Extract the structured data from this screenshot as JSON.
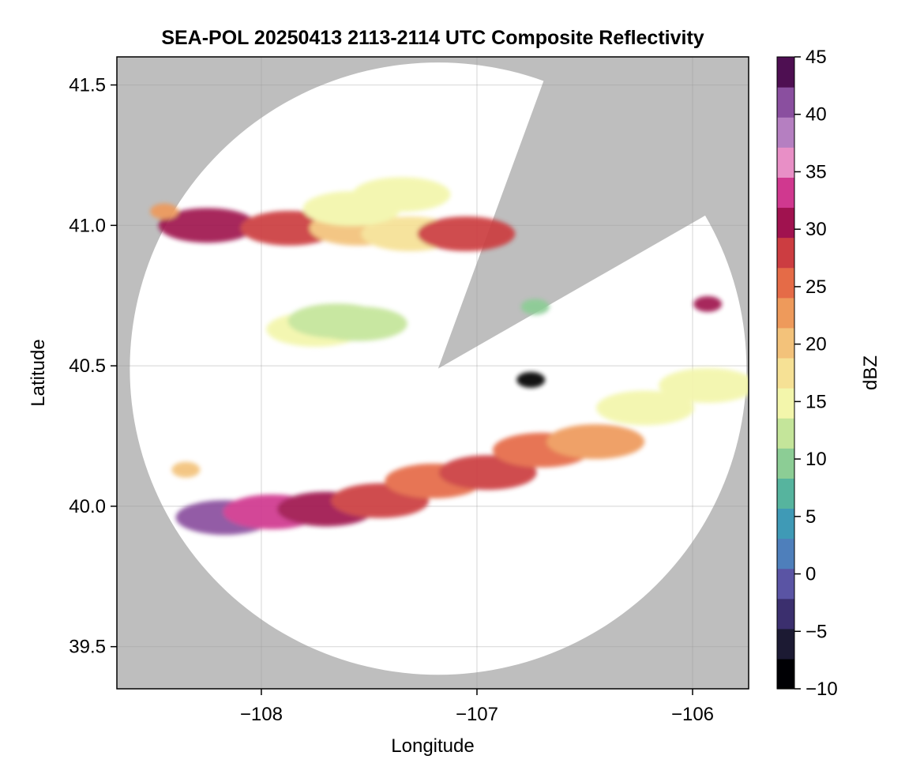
{
  "chart_data": {
    "type": "heatmap",
    "title": "SEA-POL 20250413 2113-2114 UTC Composite Reflectivity",
    "xlabel": "Longitude",
    "ylabel": "Latitude",
    "xlim": [
      -108.67,
      -105.74
    ],
    "ylim": [
      39.35,
      41.6
    ],
    "xticks": [
      {
        "value": -108,
        "label": "−108"
      },
      {
        "value": -107,
        "label": "−107"
      },
      {
        "value": -106,
        "label": "−106"
      }
    ],
    "yticks": [
      {
        "value": 39.5,
        "label": "39.5"
      },
      {
        "value": 40.0,
        "label": "40.0"
      },
      {
        "value": 40.5,
        "label": "40.5"
      },
      {
        "value": 41.0,
        "label": "41.0"
      },
      {
        "value": 41.5,
        "label": "41.5"
      }
    ],
    "grid": true,
    "missing_color": "#bebebe",
    "radar": {
      "center": [
        -107.18,
        40.49
      ],
      "max_range_lon": 1.43,
      "max_range_lat": 1.09,
      "blocked_sectors": [
        {
          "az_start": 20,
          "az_end": 60
        }
      ]
    },
    "colorbar": {
      "label": "dBZ",
      "range": [
        -10,
        45
      ],
      "ticks": [
        -10,
        -5,
        0,
        5,
        10,
        15,
        20,
        25,
        30,
        35,
        40,
        45
      ],
      "colors": [
        "#000004",
        "#1c1a33",
        "#3b2f6e",
        "#5a54a4",
        "#4e7fbb",
        "#3f9ab6",
        "#56b49e",
        "#8ccd95",
        "#c4e59a",
        "#f3f6ab",
        "#f6e195",
        "#f3c27a",
        "#ee9a5b",
        "#e56b47",
        "#cc3d41",
        "#a0124f",
        "#d0388f",
        "#e88fc6",
        "#b57fc1",
        "#8a4f9f",
        "#4e0f52"
      ]
    },
    "echoes": [
      {
        "lon": [
          -108.25,
          -107.87,
          -107.55,
          -107.31,
          -107.05
        ],
        "lat": [
          41.0,
          40.99,
          40.99,
          40.97,
          40.97
        ],
        "dbz": [
          30,
          27,
          20,
          18,
          27
        ]
      },
      {
        "lon": [
          -107.58,
          -107.35
        ],
        "lat": [
          41.06,
          41.11
        ],
        "dbz": [
          14,
          15
        ]
      },
      {
        "lon": [
          -108.45
        ],
        "lat": [
          41.05
        ],
        "dbz": [
          22
        ]
      },
      {
        "lon": [
          -107.75,
          -107.65,
          -107.55
        ],
        "lat": [
          40.63,
          40.66,
          40.65
        ],
        "dbz": [
          14,
          12,
          12
        ]
      },
      {
        "lon": [
          -106.73
        ],
        "lat": [
          40.71
        ],
        "dbz": [
          10
        ]
      },
      {
        "lon": [
          -105.93
        ],
        "lat": [
          40.72
        ],
        "dbz": [
          30
        ]
      },
      {
        "lon": [
          -106.75
        ],
        "lat": [
          40.45
        ],
        "dbz": [
          -10
        ]
      },
      {
        "lon": [
          -108.17,
          -107.95,
          -107.7,
          -107.45,
          -107.2,
          -106.95,
          -106.7,
          -106.45
        ],
        "lat": [
          39.96,
          39.98,
          39.99,
          40.02,
          40.09,
          40.12,
          40.2,
          40.23
        ],
        "dbz": [
          40,
          34,
          30,
          27,
          26,
          28,
          26,
          24
        ]
      },
      {
        "lon": [
          -108.35
        ],
        "lat": [
          40.13
        ],
        "dbz": [
          20
        ]
      },
      {
        "lon": [
          -106.22,
          -105.93
        ],
        "lat": [
          40.35,
          40.43
        ],
        "dbz": [
          15,
          14
        ]
      }
    ]
  }
}
